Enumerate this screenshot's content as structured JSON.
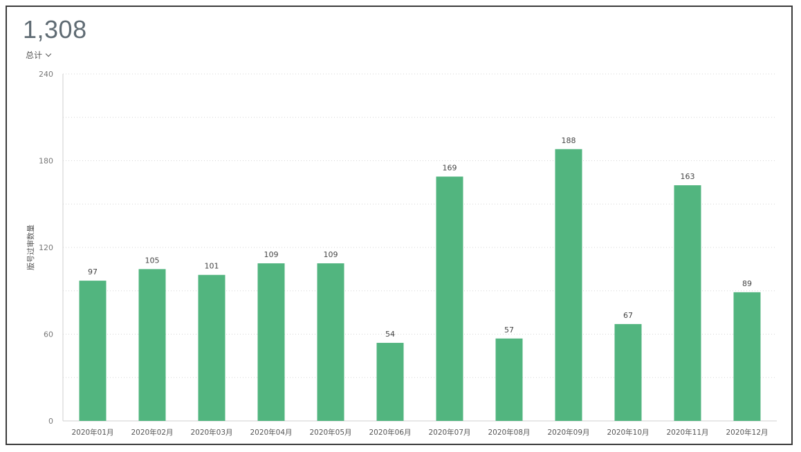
{
  "header": {
    "total": "1,308",
    "metric_label": "总计"
  },
  "chart_data": {
    "type": "bar",
    "categories": [
      "2020年01月",
      "2020年02月",
      "2020年03月",
      "2020年04月",
      "2020年05月",
      "2020年06月",
      "2020年07月",
      "2020年08月",
      "2020年09月",
      "2020年10月",
      "2020年11月",
      "2020年12月"
    ],
    "values": [
      97,
      105,
      101,
      109,
      109,
      54,
      169,
      57,
      188,
      67,
      163,
      89
    ],
    "ylabel": "版号过审数量",
    "xlabel": "",
    "ylim": [
      0,
      240
    ],
    "yticks": [
      0,
      60,
      120,
      180,
      240
    ],
    "grid": true,
    "bar_color": "#52b57f",
    "data_labels": true
  }
}
